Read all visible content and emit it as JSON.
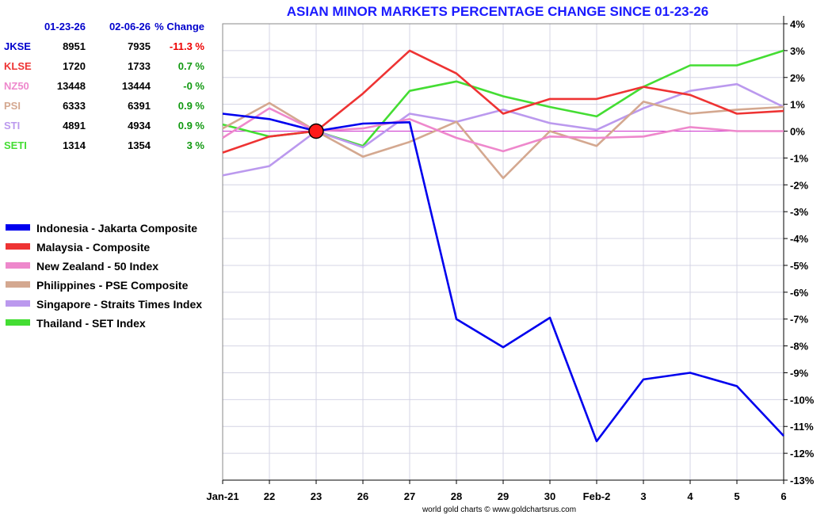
{
  "chart_data": {
    "type": "line",
    "title": "ASIAN MINOR MARKETS PERCENTAGE CHANGE SINCE 01-23-26",
    "categories": [
      "Jan-21",
      "22",
      "23",
      "26",
      "27",
      "28",
      "29",
      "30",
      "Feb-2",
      "3",
      "4",
      "5",
      "6"
    ],
    "ylim": [
      -13,
      4
    ],
    "yticks": [
      "4%",
      "3%",
      "2%",
      "1%",
      "0%",
      "-1%",
      "-2%",
      "-3%",
      "-4%",
      "-5%",
      "-6%",
      "-7%",
      "-8%",
      "-9%",
      "-10%",
      "-11%",
      "-12%",
      "-13%"
    ],
    "grid": true,
    "base_index": 2,
    "series": [
      {
        "name": "Indonesia - Jakarta Composite",
        "color": "#0000ee",
        "values": [
          0.65,
          0.45,
          0.0,
          0.28,
          0.33,
          -7.0,
          -8.05,
          -6.95,
          -11.55,
          -9.25,
          -9.0,
          -9.5,
          -11.35
        ]
      },
      {
        "name": "Malaysia - Composite",
        "color": "#ee3333",
        "values": [
          -0.8,
          -0.2,
          0.0,
          1.4,
          3.0,
          2.15,
          0.65,
          1.2,
          1.2,
          1.65,
          1.35,
          0.65,
          0.75
        ]
      },
      {
        "name": "New Zealand - 50 Index",
        "color": "#ee88cc",
        "values": [
          -0.25,
          0.85,
          0.0,
          0.1,
          0.45,
          -0.25,
          -0.75,
          -0.2,
          -0.25,
          -0.2,
          0.15,
          0.0,
          0.0
        ]
      },
      {
        "name": "Philippines - PSE Composite",
        "color": "#d4a890",
        "values": [
          0.1,
          1.05,
          0.0,
          -0.95,
          -0.4,
          0.35,
          -1.75,
          0.0,
          -0.55,
          1.1,
          0.65,
          0.8,
          0.9
        ]
      },
      {
        "name": "Singapore - Straits Times Index",
        "color": "#bb99ee",
        "values": [
          -1.65,
          -1.3,
          0.0,
          -0.6,
          0.65,
          0.35,
          0.8,
          0.3,
          0.05,
          0.85,
          1.5,
          1.75,
          0.9
        ]
      },
      {
        "name": "Thailand - SET Index",
        "color": "#44dd33",
        "values": [
          0.25,
          -0.2,
          0.0,
          -0.55,
          1.5,
          1.85,
          1.3,
          0.9,
          0.55,
          1.65,
          2.45,
          2.45,
          3.0
        ]
      }
    ],
    "table": {
      "headers": [
        "01-23-26",
        "02-06-26",
        "% Change"
      ],
      "rows": [
        {
          "symbol": "JKSE",
          "start": "8951",
          "end": "7935",
          "change": "-11.3 %",
          "symbol_color": "#0000cc",
          "change_color": "#ee0000"
        },
        {
          "symbol": "KLSE",
          "start": "1720",
          "end": "1733",
          "change": "0.7 %",
          "symbol_color": "#ee3333",
          "change_color": "#119911"
        },
        {
          "symbol": "NZ50",
          "start": "13448",
          "end": "13444",
          "change": "-0 %",
          "symbol_color": "#ee88cc",
          "change_color": "#119911"
        },
        {
          "symbol": "PSI",
          "start": "6333",
          "end": "6391",
          "change": "0.9 %",
          "symbol_color": "#d4a890",
          "change_color": "#119911"
        },
        {
          "symbol": "STI",
          "start": "4891",
          "end": "4934",
          "change": "0.9 %",
          "symbol_color": "#bb99ee",
          "change_color": "#119911"
        },
        {
          "symbol": "SETI",
          "start": "1314",
          "end": "1354",
          "change": "3 %",
          "symbol_color": "#44dd33",
          "change_color": "#119911"
        }
      ]
    },
    "credit": "world gold charts © www.goldchartsrus.com"
  }
}
